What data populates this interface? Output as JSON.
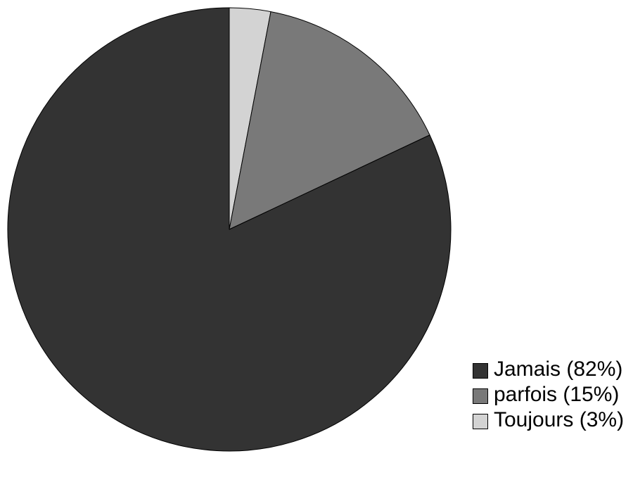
{
  "chart_data": {
    "type": "pie",
    "start_angle": "top",
    "direction": "clockwise",
    "slices": [
      {
        "label": "Toujours (3%)",
        "value": 3,
        "color": "#d3d3d3"
      },
      {
        "label": "parfois (15%)",
        "value": 15,
        "color": "#797979"
      },
      {
        "label": "Jamais (82%)",
        "value": 82,
        "color": "#333333"
      }
    ],
    "legend": {
      "placement": "bottom-right",
      "entries": [
        {
          "label": "Jamais (82%)",
          "color": "#333333"
        },
        {
          "label": "parfois (15%)",
          "color": "#797979"
        },
        {
          "label": "Toujours (3%)",
          "color": "#d3d3d3"
        }
      ]
    }
  }
}
